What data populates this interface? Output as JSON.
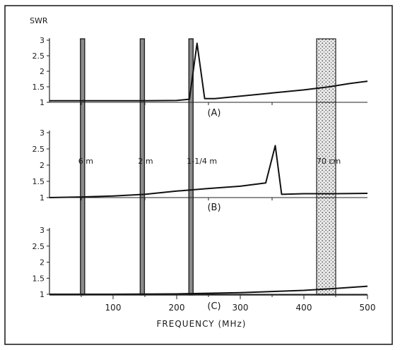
{
  "chart_data": {
    "type": "line",
    "ylabel": "SWR",
    "xlabel": "FREQUENCY (MHz)",
    "xlim": [
      0,
      500
    ],
    "x_ticks": [
      100,
      200,
      300,
      400,
      500
    ],
    "ylim": [
      1,
      3
    ],
    "y_ticks": [
      "1",
      "1.5",
      "2",
      "2.5",
      "3"
    ],
    "bands": [
      {
        "name": "6 m",
        "range": [
          50,
          54
        ]
      },
      {
        "name": "2 m",
        "range": [
          144,
          148
        ]
      },
      {
        "name": "1-1/4 m",
        "range": [
          220,
          225
        ]
      },
      {
        "name": "70 cm",
        "range": [
          420,
          450
        ]
      }
    ],
    "panels": [
      {
        "label": "(A)",
        "points": [
          [
            0,
            1.05
          ],
          [
            50,
            1.05
          ],
          [
            100,
            1.05
          ],
          [
            150,
            1.05
          ],
          [
            200,
            1.06
          ],
          [
            220,
            1.1
          ],
          [
            232,
            2.9
          ],
          [
            244,
            1.12
          ],
          [
            260,
            1.12
          ],
          [
            300,
            1.2
          ],
          [
            350,
            1.3
          ],
          [
            400,
            1.4
          ],
          [
            440,
            1.5
          ],
          [
            470,
            1.6
          ],
          [
            500,
            1.68
          ]
        ]
      },
      {
        "label": "(B)",
        "points": [
          [
            0,
            1.0
          ],
          [
            50,
            1.02
          ],
          [
            100,
            1.05
          ],
          [
            150,
            1.1
          ],
          [
            200,
            1.2
          ],
          [
            250,
            1.28
          ],
          [
            300,
            1.35
          ],
          [
            340,
            1.45
          ],
          [
            355,
            2.6
          ],
          [
            365,
            1.1
          ],
          [
            400,
            1.12
          ],
          [
            450,
            1.12
          ],
          [
            500,
            1.13
          ]
        ]
      },
      {
        "label": "(C)",
        "points": [
          [
            0,
            1.0
          ],
          [
            100,
            1.0
          ],
          [
            200,
            1.01
          ],
          [
            300,
            1.05
          ],
          [
            400,
            1.12
          ],
          [
            450,
            1.18
          ],
          [
            500,
            1.25
          ]
        ]
      }
    ]
  }
}
